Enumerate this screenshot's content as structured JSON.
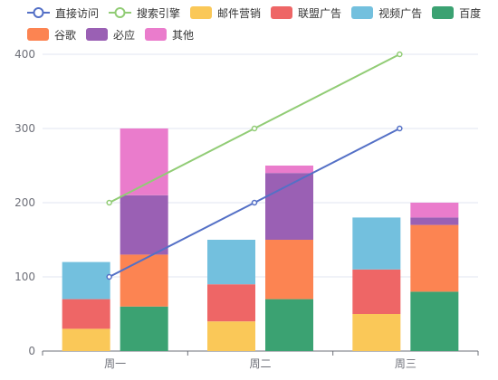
{
  "chart_data": {
    "type": "bar",
    "categories": [
      "周一",
      "周二",
      "周三"
    ],
    "ylim": [
      0,
      400
    ],
    "yticks": [
      0,
      100,
      200,
      300,
      400
    ],
    "stacks": [
      {
        "stack": "A",
        "series": [
          "邮件营销",
          "联盟广告",
          "视频广告"
        ]
      },
      {
        "stack": "B",
        "series": [
          "百度",
          "谷歌",
          "必应",
          "其他"
        ]
      }
    ],
    "series": [
      {
        "name": "直接访问",
        "kind": "line",
        "color": "#5470c6",
        "values": [
          100,
          200,
          300
        ]
      },
      {
        "name": "搜索引擎",
        "kind": "line",
        "color": "#91cc75",
        "values": [
          200,
          300,
          400
        ]
      },
      {
        "name": "邮件营销",
        "kind": "bar",
        "stack": "A",
        "color": "#fac858",
        "values": [
          30,
          40,
          50
        ]
      },
      {
        "name": "联盟广告",
        "kind": "bar",
        "stack": "A",
        "color": "#ee6666",
        "values": [
          40,
          50,
          60
        ]
      },
      {
        "name": "视频广告",
        "kind": "bar",
        "stack": "A",
        "color": "#73c0de",
        "values": [
          50,
          60,
          70
        ]
      },
      {
        "name": "百度",
        "kind": "bar",
        "stack": "B",
        "color": "#3ba272",
        "values": [
          60,
          70,
          80
        ]
      },
      {
        "name": "谷歌",
        "kind": "bar",
        "stack": "B",
        "color": "#fc8452",
        "values": [
          70,
          80,
          90
        ]
      },
      {
        "name": "必应",
        "kind": "bar",
        "stack": "B",
        "color": "#9a60b4",
        "values": [
          80,
          90,
          10
        ]
      },
      {
        "name": "其他",
        "kind": "bar",
        "stack": "B",
        "color": "#ea7ccc",
        "values": [
          90,
          10,
          20
        ]
      }
    ],
    "legend": {
      "position": "top-left",
      "rows": [
        [
          "直接访问",
          "搜索引擎",
          "邮件营销",
          "联盟广告",
          "视频广告",
          "百度"
        ],
        [
          "谷歌",
          "必应",
          "其他"
        ]
      ]
    },
    "grid": "horizontal"
  }
}
